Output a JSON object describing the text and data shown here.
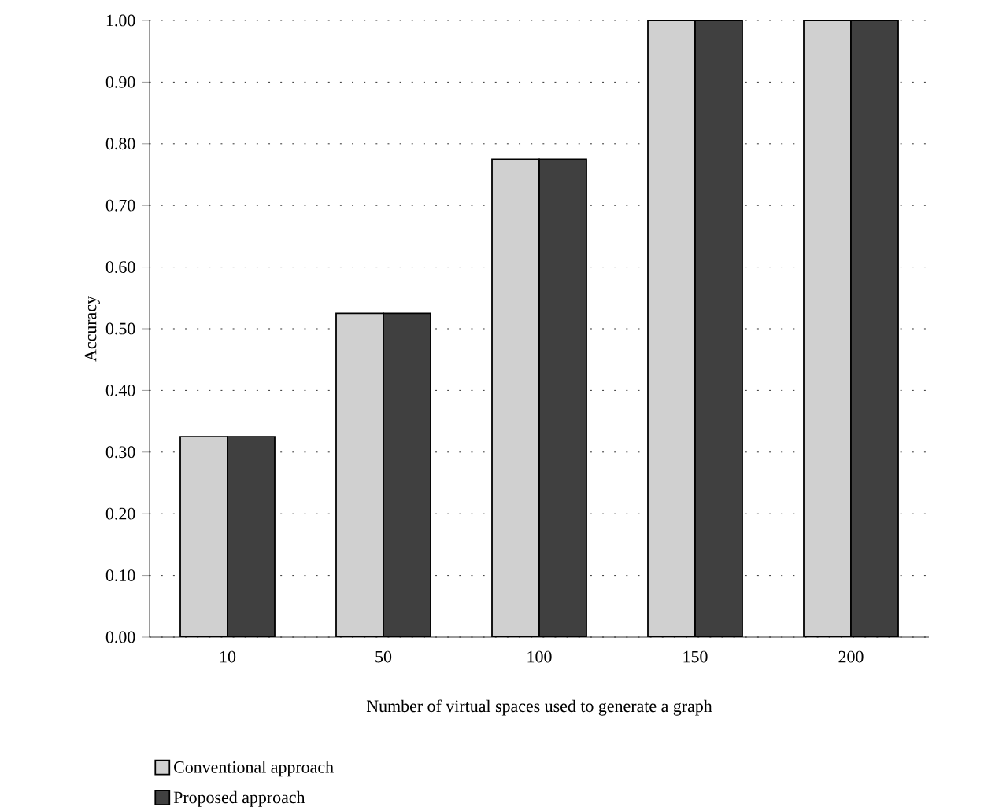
{
  "chart_data": {
    "type": "bar",
    "xlabel": "Number of virtual spaces used to generate a graph",
    "ylabel": "Accuracy",
    "categories": [
      "10",
      "50",
      "100",
      "150",
      "200"
    ],
    "series": [
      {
        "name": "Conventional approach",
        "color": "#d0d0d0",
        "values": [
          0.325,
          0.525,
          0.775,
          1.0,
          1.0
        ]
      },
      {
        "name": "Proposed approach",
        "color": "#404040",
        "values": [
          0.325,
          0.525,
          0.775,
          1.0,
          1.0
        ]
      }
    ],
    "ylim": [
      0,
      1
    ],
    "yticks": [
      {
        "value": 0,
        "label": "0.00"
      },
      {
        "value": 0.1,
        "label": "0.10"
      },
      {
        "value": 0.2,
        "label": "0.20"
      },
      {
        "value": 0.3,
        "label": "0.30"
      },
      {
        "value": 0.4,
        "label": "0.40"
      },
      {
        "value": 0.5,
        "label": "0.50"
      },
      {
        "value": 0.6,
        "label": "0.60"
      },
      {
        "value": 0.7,
        "label": "0.70"
      },
      {
        "value": 0.8,
        "label": "0.80"
      },
      {
        "value": 0.9,
        "label": "0.90"
      },
      {
        "value": 1,
        "label": "1.00"
      }
    ],
    "grid": "y",
    "legend": "bottom left"
  }
}
